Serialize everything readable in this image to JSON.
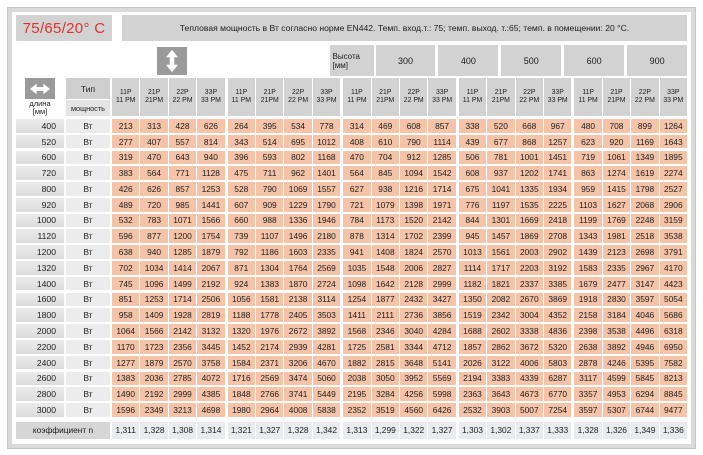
{
  "meta": {
    "temperature_label": "75/65/20° C",
    "title": "Тепловая мощность в Вт согласно норме EN442. Темп. вход.т.: 75; темп. выход. т.:65; темп. в помещении: 20 °С."
  },
  "header": {
    "height_label": "Высота",
    "height_unit": "[мм]",
    "length_label": "длина",
    "length_unit": "[мм]",
    "type_label": "Тип",
    "power_label": "мощность",
    "unit_label": "Вт",
    "heights": [
      "300",
      "400",
      "500",
      "600",
      "900"
    ],
    "types": [
      [
        "11P",
        "11 PM"
      ],
      [
        "21P",
        "21PM"
      ],
      [
        "22P",
        "22 PM"
      ],
      [
        "33P",
        "33 PM"
      ]
    ]
  },
  "icons": {
    "height_icon": "up-down-arrow",
    "length_icon": "left-right-arrow"
  },
  "colors": {
    "accent_red": "#e0322b",
    "header_gray": "#d2d2d2",
    "data_salmon": "#f5c4a8",
    "icon_gray": "#9a9a9a"
  },
  "table": {
    "rows": [
      {
        "length": "400",
        "values": [
          213,
          313,
          428,
          626,
          264,
          395,
          534,
          778,
          314,
          469,
          608,
          857,
          338,
          520,
          668,
          967,
          480,
          708,
          899,
          1264
        ]
      },
      {
        "length": "520",
        "values": [
          277,
          407,
          557,
          814,
          343,
          514,
          695,
          1012,
          408,
          610,
          790,
          1114,
          439,
          677,
          868,
          1257,
          623,
          920,
          1169,
          1643
        ]
      },
      {
        "length": "600",
        "values": [
          319,
          470,
          643,
          940,
          396,
          593,
          802,
          1168,
          470,
          704,
          912,
          1285,
          506,
          781,
          1001,
          1451,
          719,
          1061,
          1349,
          1895
        ]
      },
      {
        "length": "720",
        "values": [
          383,
          564,
          771,
          1128,
          475,
          711,
          962,
          1401,
          564,
          845,
          1094,
          1542,
          608,
          937,
          1202,
          1741,
          863,
          1274,
          1619,
          2274
        ]
      },
      {
        "length": "800",
        "values": [
          426,
          626,
          857,
          1253,
          528,
          790,
          1069,
          1557,
          627,
          938,
          1216,
          1714,
          675,
          1041,
          1335,
          1934,
          959,
          1415,
          1798,
          2527
        ]
      },
      {
        "length": "920",
        "values": [
          489,
          720,
          985,
          1441,
          607,
          909,
          1229,
          1790,
          721,
          1079,
          1398,
          1971,
          776,
          1197,
          1535,
          2225,
          1103,
          1627,
          2068,
          2906
        ]
      },
      {
        "length": "1000",
        "values": [
          532,
          783,
          1071,
          1566,
          660,
          988,
          1336,
          1946,
          784,
          1173,
          1520,
          2142,
          844,
          1301,
          1669,
          2418,
          1199,
          1769,
          2248,
          3159
        ]
      },
      {
        "length": "1120",
        "values": [
          596,
          877,
          1200,
          1754,
          739,
          1107,
          1496,
          2180,
          878,
          1314,
          1702,
          2399,
          945,
          1457,
          1869,
          2708,
          1343,
          1981,
          2518,
          3538
        ]
      },
      {
        "length": "1200",
        "values": [
          638,
          940,
          1285,
          1879,
          792,
          1186,
          1603,
          2335,
          941,
          1408,
          1824,
          2570,
          1013,
          1561,
          2003,
          2902,
          1439,
          2123,
          2698,
          3791
        ]
      },
      {
        "length": "1320",
        "values": [
          702,
          1034,
          1414,
          2067,
          871,
          1304,
          1764,
          2569,
          1035,
          1548,
          2006,
          2827,
          1114,
          1717,
          2203,
          3192,
          1583,
          2335,
          2967,
          4170
        ]
      },
      {
        "length": "1400",
        "values": [
          745,
          1096,
          1499,
          2192,
          924,
          1383,
          1870,
          2724,
          1098,
          1642,
          2128,
          2999,
          1182,
          1821,
          2337,
          3385,
          1679,
          2477,
          3147,
          4423
        ]
      },
      {
        "length": "1600",
        "values": [
          851,
          1253,
          1714,
          2506,
          1056,
          1581,
          2138,
          3114,
          1254,
          1877,
          2432,
          3427,
          1350,
          2082,
          2670,
          3869,
          1918,
          2830,
          3597,
          5054
        ]
      },
      {
        "length": "1800",
        "values": [
          958,
          1409,
          1928,
          2819,
          1188,
          1778,
          2405,
          3503,
          1411,
          2111,
          2736,
          3856,
          1519,
          2342,
          3004,
          4352,
          2158,
          3184,
          4046,
          5686
        ]
      },
      {
        "length": "2000",
        "values": [
          1064,
          1566,
          2142,
          3132,
          1320,
          1976,
          2672,
          3892,
          1568,
          2346,
          3040,
          4284,
          1688,
          2602,
          3338,
          4836,
          2398,
          3538,
          4496,
          6318
        ]
      },
      {
        "length": "2200",
        "values": [
          1170,
          1723,
          2356,
          3445,
          1452,
          2174,
          2939,
          4281,
          1725,
          2581,
          3344,
          4712,
          1857,
          2862,
          3672,
          5320,
          2638,
          3892,
          4946,
          6950
        ]
      },
      {
        "length": "2400",
        "values": [
          1277,
          1879,
          2570,
          3758,
          1584,
          2371,
          3206,
          4670,
          1882,
          2815,
          3648,
          5141,
          2026,
          3122,
          4006,
          5803,
          2878,
          4246,
          5395,
          7582
        ]
      },
      {
        "length": "2600",
        "values": [
          1383,
          2036,
          2785,
          4072,
          1716,
          2569,
          3474,
          5060,
          2038,
          3050,
          3952,
          5569,
          2194,
          3383,
          4339,
          6287,
          3117,
          4599,
          5845,
          8213
        ]
      },
      {
        "length": "2800",
        "values": [
          1490,
          2192,
          2999,
          4385,
          1848,
          2766,
          3741,
          5449,
          2195,
          3284,
          4256,
          5998,
          2363,
          3643,
          4673,
          6770,
          3357,
          4953,
          6294,
          8845
        ]
      },
      {
        "length": "3000",
        "values": [
          1596,
          2349,
          3213,
          4698,
          1980,
          2964,
          4008,
          5838,
          2352,
          3519,
          4560,
          6426,
          2532,
          3903,
          5007,
          7254,
          3597,
          5307,
          6744,
          9477
        ]
      }
    ],
    "coefficient_label": "коэффициент n",
    "coefficients": [
      "1,311",
      "1,328",
      "1,308",
      "1,314",
      "1,321",
      "1,327",
      "1,328",
      "1,342",
      "1,313",
      "1,299",
      "1,322",
      "1,327",
      "1,303",
      "1,302",
      "1,337",
      "1,333",
      "1,328",
      "1,326",
      "1,349",
      "1,336"
    ]
  }
}
